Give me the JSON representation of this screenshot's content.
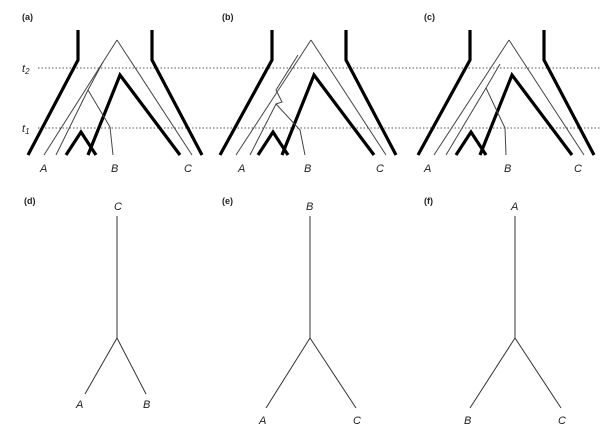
{
  "panels": {
    "a": {
      "label": "(a)",
      "taxa": [
        "A",
        "B",
        "C"
      ]
    },
    "b": {
      "label": "(b)",
      "taxa": [
        "A",
        "B",
        "C"
      ]
    },
    "c": {
      "label": "(c)",
      "taxa": [
        "A",
        "B",
        "C"
      ]
    },
    "d": {
      "label": "(d)",
      "root": "C",
      "left": "A",
      "right": "B"
    },
    "e": {
      "label": "(e)",
      "root": "B",
      "left": "A",
      "right": "C"
    },
    "f": {
      "label": "(f)",
      "root": "A",
      "left": "B",
      "right": "C"
    }
  },
  "time_markers": {
    "t2": {
      "base": "t",
      "sub": "2"
    },
    "t1": {
      "base": "t",
      "sub": "1"
    }
  }
}
